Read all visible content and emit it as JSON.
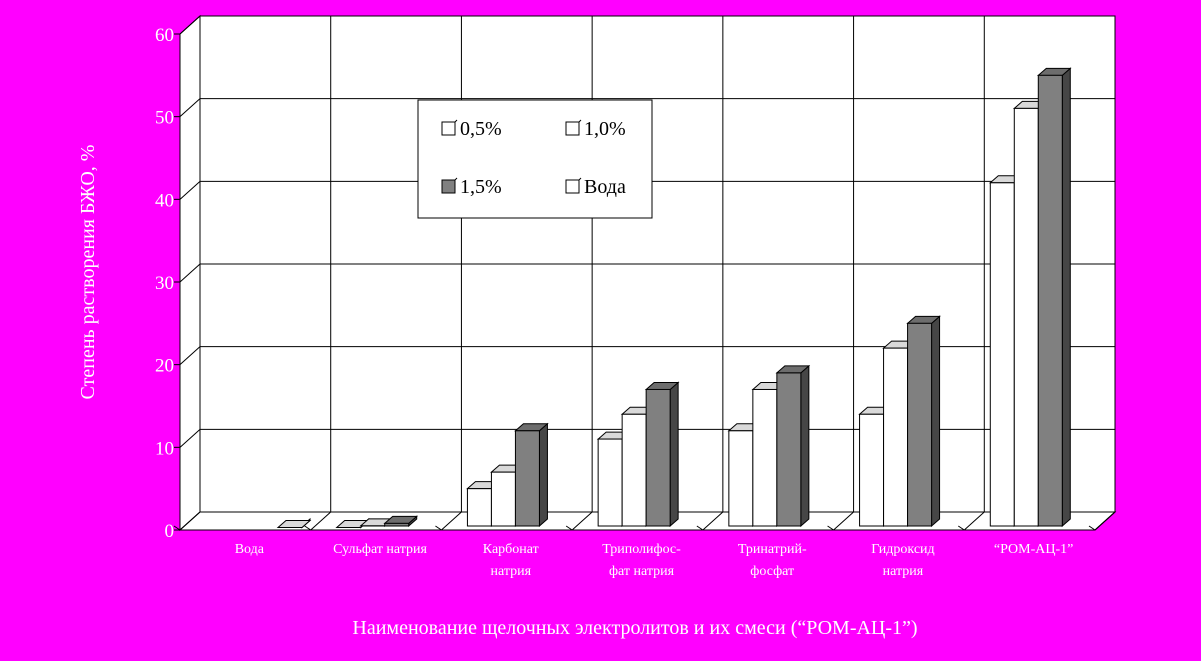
{
  "colors": {
    "background": "#ff00ff",
    "plot_area": "#ffffff",
    "grid": "#000000",
    "series_0_5": "#ffffff",
    "series_1_0": "#ffffff",
    "series_1_5": "#808080",
    "series_water": "#ffffff",
    "text": "#ffffff",
    "legend_text": "#000000"
  },
  "chart_data": {
    "type": "bar",
    "style": "3d-clustered-column",
    "ylabel": "Степень растворения БЖО, %",
    "xlabel": "Наименование щелочных электролитов и их смеси (“РОМ-АЦ-1”)",
    "ylim": [
      0,
      60
    ],
    "yticks": [
      "0",
      "10",
      "20",
      "30",
      "40",
      "50",
      "60"
    ],
    "grid": true,
    "legend_position": "inside-top-left",
    "categories": [
      [
        "Вода"
      ],
      [
        "Сульфат натрия"
      ],
      [
        "Карбонат",
        "натрия"
      ],
      [
        "Триполифос-",
        "фат натрия"
      ],
      [
        "Тринатрий-",
        "фосфат"
      ],
      [
        "Гидроксид",
        "натрия"
      ],
      [
        "“РОМ-АЦ-1”"
      ]
    ],
    "series": [
      {
        "name": "0,5%",
        "color": "#ffffff",
        "values": [
          null,
          0.3,
          5,
          11,
          12,
          14,
          42
        ]
      },
      {
        "name": "1,0%",
        "color": "#ffffff",
        "values": [
          null,
          0.5,
          7,
          14,
          17,
          22,
          51
        ]
      },
      {
        "name": "1,5%",
        "color": "#808080",
        "values": [
          null,
          0.8,
          12,
          17,
          19,
          25,
          55
        ]
      },
      {
        "name": "Вода",
        "color": "#ffffff",
        "values": [
          0.3,
          null,
          null,
          null,
          null,
          null,
          null
        ]
      }
    ]
  }
}
